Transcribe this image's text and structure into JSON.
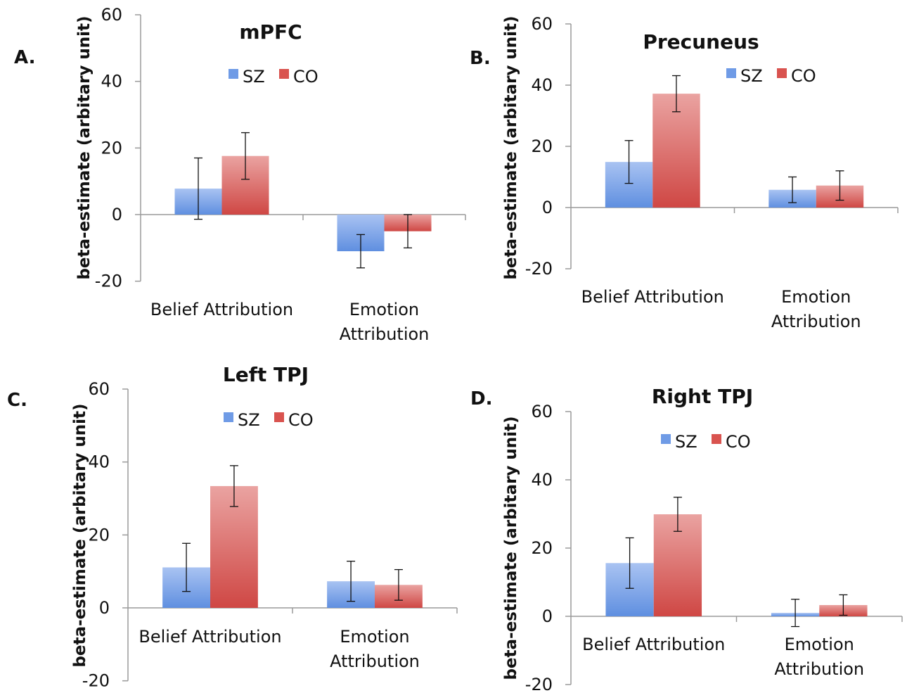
{
  "colors": {
    "SZ": "#6f9be6",
    "CO": "#d9534f"
  },
  "chart_data": [
    {
      "panel": "A.",
      "type": "bar",
      "title": "mPFC",
      "ylabel": "beta-estimate (arbitary unit)",
      "ylim": [
        -20,
        60
      ],
      "yticks": [
        -20,
        0,
        20,
        40,
        60
      ],
      "categories": [
        [
          "Belief Attribution"
        ],
        [
          "Emotion",
          "Attribution"
        ]
      ],
      "legend": [
        "SZ",
        "CO"
      ],
      "series": [
        {
          "name": "SZ",
          "values": [
            7.8,
            -11
          ],
          "errors": [
            9.2,
            5
          ]
        },
        {
          "name": "CO",
          "values": [
            17.6,
            -5
          ],
          "errors": [
            7,
            5
          ]
        }
      ]
    },
    {
      "panel": "B.",
      "type": "bar",
      "title": "Precuneus",
      "ylabel": "beta-estimate (arbitary unit)",
      "ylim": [
        -20,
        60
      ],
      "yticks": [
        -20,
        0,
        20,
        40,
        60
      ],
      "categories": [
        [
          "Belief Attribution"
        ],
        [
          "Emotion",
          "Attribution"
        ]
      ],
      "legend": [
        "SZ",
        "CO"
      ],
      "series": [
        {
          "name": "SZ",
          "values": [
            14.9,
            5.8
          ],
          "errors": [
            7,
            4.2
          ]
        },
        {
          "name": "CO",
          "values": [
            37.2,
            7.2
          ],
          "errors": [
            5.9,
            4.8
          ]
        }
      ]
    },
    {
      "panel": "C.",
      "type": "bar",
      "title": "Left TPJ",
      "ylabel": "beta-estimate (arbitary unit)",
      "ylim": [
        -20,
        60
      ],
      "yticks": [
        -20,
        0,
        20,
        40,
        60
      ],
      "categories": [
        [
          "Belief Attribution"
        ],
        [
          "Emotion",
          "Attribution"
        ]
      ],
      "legend": [
        "SZ",
        "CO"
      ],
      "series": [
        {
          "name": "SZ",
          "values": [
            11.1,
            7.3
          ],
          "errors": [
            6.6,
            5.5
          ]
        },
        {
          "name": "CO",
          "values": [
            33.4,
            6.3
          ],
          "errors": [
            5.6,
            4.2
          ]
        }
      ]
    },
    {
      "panel": "D.",
      "type": "bar",
      "title": "Right TPJ",
      "ylabel": "beta-estimate (arbitary unit)",
      "ylim": [
        -20,
        60
      ],
      "yticks": [
        -20,
        0,
        20,
        40,
        60
      ],
      "categories": [
        [
          "Belief Attribution"
        ],
        [
          "Emotion",
          "Attribution"
        ]
      ],
      "legend": [
        "SZ",
        "CO"
      ],
      "series": [
        {
          "name": "SZ",
          "values": [
            15.6,
            1
          ],
          "errors": [
            7.4,
            4
          ]
        },
        {
          "name": "CO",
          "values": [
            29.9,
            3.3
          ],
          "errors": [
            5,
            3
          ]
        }
      ]
    }
  ]
}
